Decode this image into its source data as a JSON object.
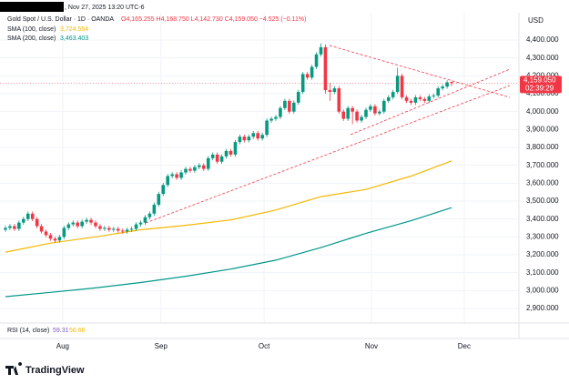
{
  "chart_data": {
    "type": "candlestick",
    "timestamp": ", Nov 27, 2025 13:20 UTC-6",
    "title": "Gold Spot / U.S. Dollar · 1D · OANDA",
    "ohlc_text": "O4,165.255 H4,168.750 L4,142.730 C4,159.050 −4.525 (−0.11%)",
    "currency": "USD",
    "up_color": "#089981",
    "down_color": "#f23645",
    "open": [
      3340,
      3350,
      3360,
      3345,
      3380,
      3400,
      3430,
      3400,
      3360,
      3330,
      3310,
      3290,
      3280,
      3300,
      3350,
      3370,
      3380,
      3360,
      3385,
      3395,
      3380,
      3360,
      3345,
      3350,
      3340,
      3345,
      3335,
      3330,
      3340,
      3345,
      3370,
      3380,
      3410,
      3430,
      3480,
      3540,
      3590,
      3640,
      3650,
      3630,
      3660,
      3680,
      3670,
      3690,
      3700,
      3680,
      3740,
      3760,
      3720,
      3750,
      3780,
      3760,
      3830,
      3860,
      3840,
      3860,
      3880,
      3850,
      3870,
      3950,
      3960,
      3970,
      4020,
      4060,
      4000,
      4050,
      4110,
      4210,
      4190,
      4250,
      4320,
      4360,
      4120,
      4110,
      4130,
      4000,
      3960,
      4020,
      4000,
      3950,
      3970,
      4010,
      4030,
      3990,
      4000,
      4060,
      4080,
      4110,
      4200,
      4080,
      4060,
      4050,
      4080,
      4070,
      4060,
      4085,
      4090,
      4130,
      4140,
      4165.255
    ],
    "high": [
      3362,
      3372,
      3372,
      3392,
      3412,
      3442,
      3442,
      3412,
      3372,
      3342,
      3322,
      3302,
      3312,
      3362,
      3382,
      3392,
      3392,
      3397,
      3407,
      3407,
      3392,
      3372,
      3362,
      3362,
      3357,
      3357,
      3347,
      3352,
      3357,
      3382,
      3392,
      3422,
      3442,
      3492,
      3552,
      3602,
      3652,
      3662,
      3662,
      3672,
      3692,
      3692,
      3702,
      3712,
      3712,
      3752,
      3772,
      3772,
      3762,
      3792,
      3792,
      3842,
      3872,
      3872,
      3872,
      3892,
      3892,
      3882,
      3962,
      3972,
      3982,
      4032,
      4072,
      4072,
      4062,
      4122,
      4222,
      4222,
      4262,
      4332,
      4381,
      4375,
      4160,
      4142,
      4142,
      4012,
      4032,
      4032,
      4012,
      3982,
      4022,
      4042,
      4042,
      4012,
      4072,
      4092,
      4122,
      4245,
      4212,
      4092,
      4072,
      4092,
      4092,
      4082,
      4097,
      4102,
      4142,
      4152,
      4175,
      4168.75
    ],
    "low": [
      3328,
      3338,
      3333,
      3333,
      3368,
      3388,
      3388,
      3348,
      3318,
      3298,
      3278,
      3268,
      3268,
      3288,
      3338,
      3358,
      3348,
      3348,
      3373,
      3368,
      3348,
      3333,
      3333,
      3328,
      3328,
      3323,
      3318,
      3318,
      3328,
      3333,
      3358,
      3368,
      3398,
      3418,
      3468,
      3528,
      3578,
      3628,
      3618,
      3618,
      3648,
      3658,
      3658,
      3678,
      3668,
      3668,
      3728,
      3708,
      3708,
      3738,
      3748,
      3748,
      3818,
      3828,
      3828,
      3848,
      3838,
      3838,
      3858,
      3938,
      3948,
      3958,
      4008,
      3988,
      3988,
      4038,
      4098,
      4178,
      4178,
      4238,
      4308,
      4100,
      4060,
      4098,
      3988,
      3948,
      3948,
      3930,
      3938,
      3938,
      3958,
      3998,
      3978,
      3978,
      3988,
      4048,
      4068,
      4098,
      4068,
      4048,
      4038,
      4038,
      4058,
      4048,
      4048,
      4073,
      4078,
      4118,
      4128,
      4142.73
    ],
    "close": [
      3350,
      3360,
      3345,
      3380,
      3400,
      3430,
      3400,
      3360,
      3330,
      3310,
      3290,
      3280,
      3300,
      3350,
      3370,
      3380,
      3360,
      3385,
      3395,
      3380,
      3360,
      3345,
      3350,
      3340,
      3345,
      3335,
      3330,
      3340,
      3345,
      3370,
      3380,
      3410,
      3430,
      3480,
      3540,
      3590,
      3640,
      3650,
      3630,
      3660,
      3680,
      3670,
      3690,
      3700,
      3680,
      3740,
      3760,
      3720,
      3750,
      3780,
      3760,
      3830,
      3860,
      3840,
      3860,
      3880,
      3850,
      3870,
      3950,
      3960,
      3970,
      4020,
      4060,
      4000,
      4050,
      4110,
      4210,
      4190,
      4250,
      4320,
      4360,
      4120,
      4110,
      4130,
      4000,
      3960,
      4020,
      4000,
      3950,
      3970,
      4010,
      4030,
      3990,
      4000,
      4060,
      4080,
      4110,
      4200,
      4080,
      4060,
      4050,
      4080,
      4070,
      4060,
      4085,
      4090,
      4130,
      4140,
      4163.575,
      4159.05
    ],
    "series": [
      {
        "name": "SMA (100, close)",
        "color": "#f5b700",
        "x": [
          0,
          10,
          20,
          30,
          40,
          50,
          60,
          70,
          80,
          90,
          99
        ],
        "values": [
          3215,
          3265,
          3300,
          3340,
          3365,
          3395,
          3450,
          3525,
          3565,
          3640,
          3724.554
        ],
        "value_labels": [
          "3,724.554"
        ]
      },
      {
        "name": "SMA (200, close)",
        "color": "#009688",
        "x": [
          0,
          10,
          20,
          30,
          40,
          50,
          60,
          70,
          80,
          90,
          99
        ],
        "values": [
          2966,
          2990,
          3015,
          3045,
          3080,
          3120,
          3170,
          3240,
          3320,
          3390,
          3463.403
        ],
        "value_labels": [
          "3,463.403"
        ]
      }
    ],
    "last_price_label": "4,159.050",
    "countdown": "02:39:29",
    "ylim": [
      2834,
      4522
    ],
    "yticks": [
      {
        "value": 2900,
        "label": "2,900.000"
      },
      {
        "value": 3000,
        "label": "3,000.000"
      },
      {
        "value": 3100,
        "label": "3,100.000"
      },
      {
        "value": 3200,
        "label": "3,200.000"
      },
      {
        "value": 3300,
        "label": "3,300.000"
      },
      {
        "value": 3400,
        "label": "3,400.000"
      },
      {
        "value": 3500,
        "label": "3,500.000"
      },
      {
        "value": 3600,
        "label": "3,600.000"
      },
      {
        "value": 3700,
        "label": "3,700.000"
      },
      {
        "value": 3800,
        "label": "3,800.000"
      },
      {
        "value": 3900,
        "label": "3,900.000"
      },
      {
        "value": 4000,
        "label": "4,000.000"
      },
      {
        "value": 4100,
        "label": "4,100.000"
      },
      {
        "value": 4200,
        "label": "4,200.000"
      },
      {
        "value": 4300,
        "label": "4,300.000"
      },
      {
        "value": 4400,
        "label": "4,400.000"
      }
    ],
    "xticks": [
      {
        "value": 12.7,
        "label": "Aug"
      },
      {
        "value": 34.5,
        "label": "Sep"
      },
      {
        "value": 57.4,
        "label": "Oct"
      },
      {
        "value": 81.2,
        "label": "Nov"
      },
      {
        "value": 101.8,
        "label": "Dec"
      }
    ],
    "grid": true,
    "rsi": {
      "name": "RSI (14, close)",
      "values": [
        59.31,
        56.66
      ],
      "colors": [
        "#7e57c2",
        "#f5b700"
      ]
    },
    "brand": "TradingView"
  }
}
